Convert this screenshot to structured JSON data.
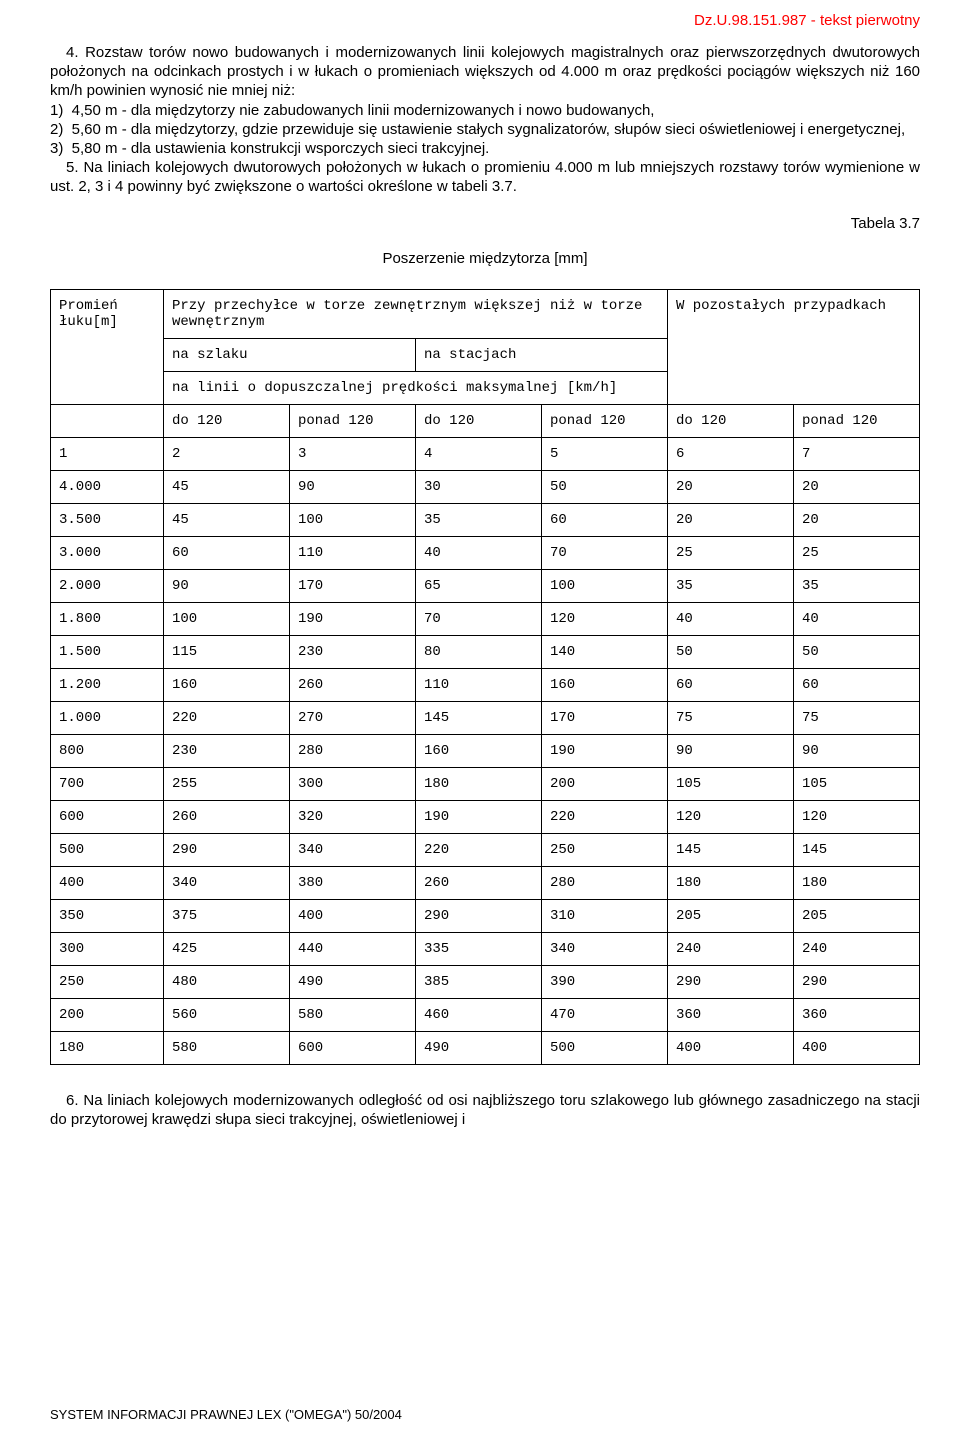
{
  "header": {
    "right_text": "Dz.U.98.151.987 - tekst pierwotny",
    "color": "#ff0000"
  },
  "paragraphs": {
    "p4": "4. Rozstaw torów nowo budowanych i modernizowanych linii kolejowych magistralnych oraz pierwszorzędnych dwutorowych położonych na odcinkach prostych i w łukach o promieniach większych od 4.000 m oraz prędkości pociągów większych niż 160 km/h powinien wynosić nie mniej niż:",
    "li1": "1)  4,50 m - dla międzytorzy nie zabudowanych linii modernizowanych i nowo budowanych,",
    "li2": "2)  5,60 m - dla międzytorzy, gdzie przewiduje się ustawienie stałych sygnalizatorów, słupów sieci oświetleniowej i energetycznej,",
    "li3": "3)  5,80 m - dla ustawienia konstrukcji wsporczych sieci trakcyjnej.",
    "p5": "5. Na liniach kolejowych dwutorowych położonych w łukach o promieniu 4.000 m lub mniejszych rozstawy torów wymienione w ust. 2, 3 i 4 powinny być zwiększone o wartości określone w tabeli 3.7.",
    "p6": "6. Na liniach kolejowych modernizowanych odległość od osi najbliższego toru szlakowego lub głównego zasadniczego na stacji do przytorowej krawędzi słupa sieci trakcyjnej, oświetleniowej i"
  },
  "table": {
    "caption": "Tabela 3.7",
    "title": "Poszerzenie międzytorza [mm]",
    "header": {
      "col1": "Promień łuku[m]",
      "col2": "Przy przechyłce w torze zewnętrznym większej niż w torze wewnętrznym",
      "col3": "W pozostałych przypadkach",
      "sub1": "na szlaku",
      "sub2": "na stacjach",
      "span_row": "na linii o dopuszczalnej prędkości maksymalnej [km/h]",
      "speed_a": "do 120",
      "speed_b": "ponad 120"
    },
    "colnums": [
      "1",
      "2",
      "3",
      "4",
      "5",
      "6",
      "7"
    ],
    "rows": [
      [
        "4.000",
        "45",
        "90",
        "30",
        "50",
        "20",
        "20"
      ],
      [
        "3.500",
        "45",
        "100",
        "35",
        "60",
        "20",
        "20"
      ],
      [
        "3.000",
        "60",
        "110",
        "40",
        "70",
        "25",
        "25"
      ],
      [
        "2.000",
        "90",
        "170",
        "65",
        "100",
        "35",
        "35"
      ],
      [
        "1.800",
        "100",
        "190",
        "70",
        "120",
        "40",
        "40"
      ],
      [
        "1.500",
        "115",
        "230",
        "80",
        "140",
        "50",
        "50"
      ],
      [
        "1.200",
        "160",
        "260",
        "110",
        "160",
        "60",
        "60"
      ],
      [
        "1.000",
        "220",
        "270",
        "145",
        "170",
        "75",
        "75"
      ],
      [
        "800",
        "230",
        "280",
        "160",
        "190",
        "90",
        "90"
      ],
      [
        "700",
        "255",
        "300",
        "180",
        "200",
        "105",
        "105"
      ],
      [
        "600",
        "260",
        "320",
        "190",
        "220",
        "120",
        "120"
      ],
      [
        "500",
        "290",
        "340",
        "220",
        "250",
        "145",
        "145"
      ],
      [
        "400",
        "340",
        "380",
        "260",
        "280",
        "180",
        "180"
      ],
      [
        "350",
        "375",
        "400",
        "290",
        "310",
        "205",
        "205"
      ],
      [
        "300",
        "425",
        "440",
        "335",
        "340",
        "240",
        "240"
      ],
      [
        "250",
        "480",
        "490",
        "385",
        "390",
        "290",
        "290"
      ],
      [
        "200",
        "560",
        "580",
        "460",
        "470",
        "360",
        "360"
      ],
      [
        "180",
        "580",
        "600",
        "490",
        "500",
        "400",
        "400"
      ]
    ],
    "font": {
      "body_pt": 15,
      "mono_pt": 14,
      "border_color": "#000000",
      "bg_color": "#ffffff"
    }
  },
  "footer": {
    "text": "SYSTEM INFORMACJI PRAWNEJ LEX (\"OMEGA\") 50/2004"
  }
}
